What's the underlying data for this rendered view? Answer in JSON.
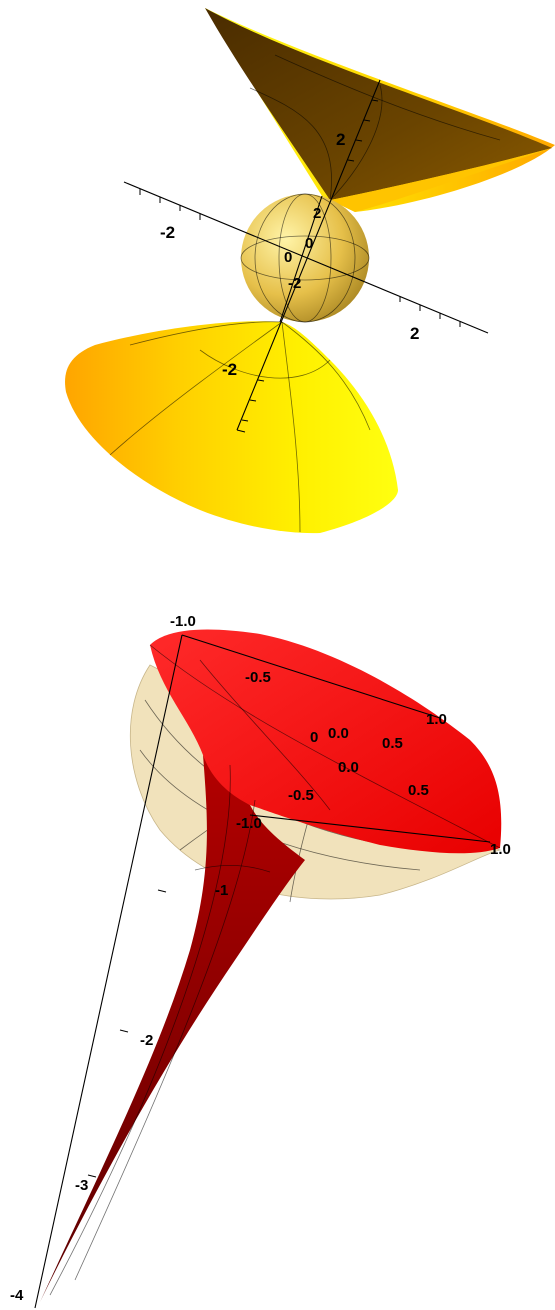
{
  "figures": [
    {
      "id": "cone-and-sphere",
      "colors": {
        "cone_light": "#ffff00",
        "cone_mid": "#ffb400",
        "cone_dark": "#5a3a00",
        "sphere": "#e8c44a"
      },
      "axes": {
        "horizontal_labels": [
          "-2",
          "2"
        ],
        "depth_labels": [
          "-2",
          "0",
          "2"
        ],
        "vertical_labels": [
          "2",
          "0",
          "-2"
        ]
      }
    },
    {
      "id": "funnel-in-hemisphere",
      "colors": {
        "funnel": "#ff1a1a",
        "funnel_dark": "#7a0000",
        "hemisphere": "#f3e4bd"
      },
      "axes": {
        "x_labels": [
          "-1.0",
          "-0.5",
          "0.0",
          "0.5",
          "1.0"
        ],
        "y_labels": [
          "1.0",
          "0.5",
          "0.0",
          "-0.5",
          "-1.0"
        ],
        "origin_label": "0",
        "z_labels": [
          "-1",
          "-2",
          "-3",
          "-4"
        ]
      }
    }
  ]
}
